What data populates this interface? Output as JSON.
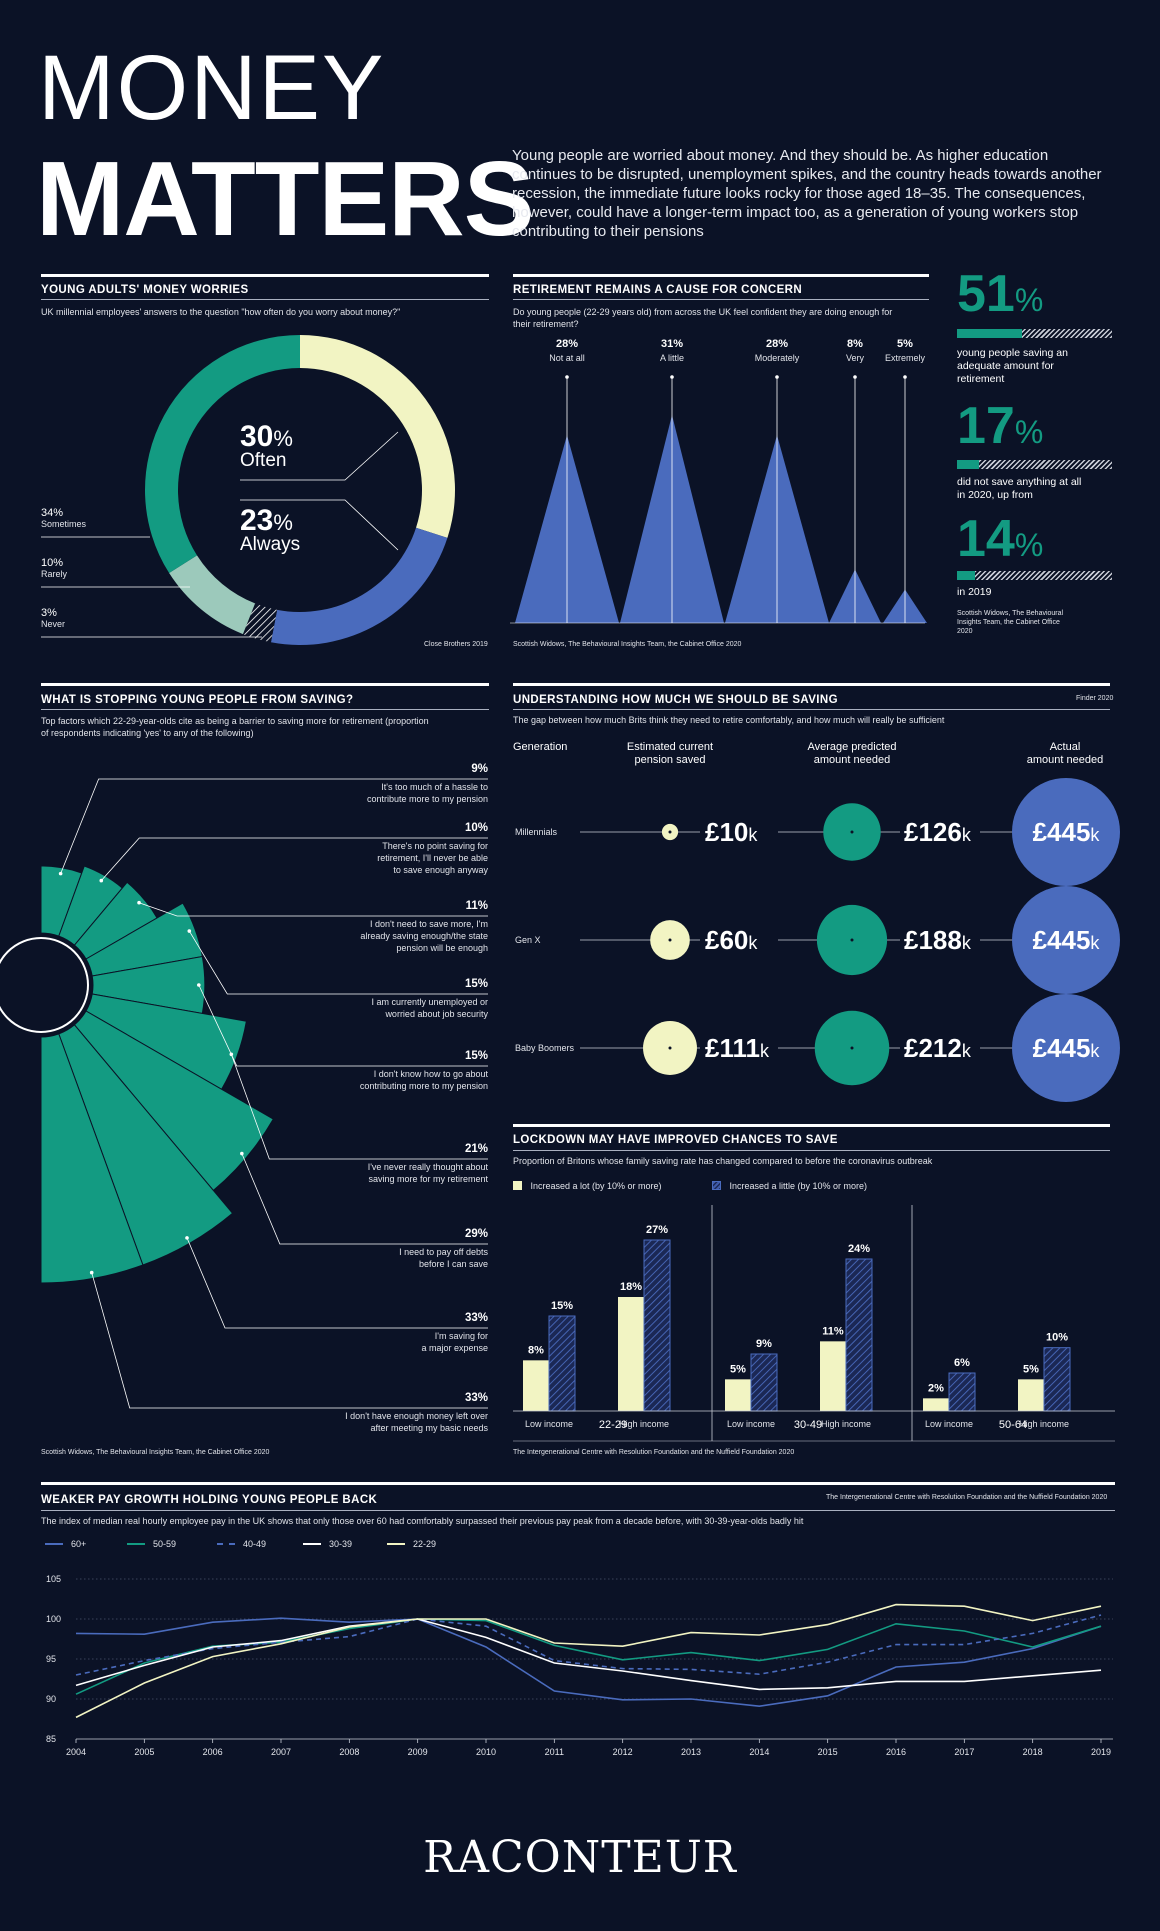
{
  "header": {
    "title_line1": "MONEY",
    "title_line2": "MATTERS",
    "intro": "Young people are worried about money. And they should be. As higher education continues to be disrupted, unemployment spikes, and the country heads towards another recession, the immediate future looks rocky for those aged 18–35. The consequences, however, could have a longer-term impact too, as a generation of young workers stop contributing to their pensions"
  },
  "colors": {
    "background": "#0b1226",
    "teal": "#139b82",
    "blue": "#4a6bbd",
    "cream": "#f2f4c3",
    "mint": "#9cc9bb"
  },
  "worries": {
    "title": "YOUNG ADULTS' MONEY WORRIES",
    "subtitle": "UK millennial employees' answers to the question \"how often do you worry about money?\"",
    "source": "Close Brothers 2019",
    "chart_data": {
      "type": "pie",
      "categories": [
        "Often",
        "Always",
        "Never",
        "Rarely",
        "Sometimes"
      ],
      "values": [
        30,
        23,
        3,
        10,
        34
      ],
      "colors": [
        "#f2f4c3",
        "#4a6bbd",
        "#ffffff",
        "#9cc9bb",
        "#139b82"
      ]
    },
    "labels": [
      {
        "value": "30%",
        "num": "30",
        "name": "Often"
      },
      {
        "value": "23%",
        "num": "23",
        "name": "Always"
      },
      {
        "value": "34%",
        "name": "Sometimes"
      },
      {
        "value": "10%",
        "name": "Rarely"
      },
      {
        "value": "3%",
        "name": "Never"
      }
    ]
  },
  "retirement": {
    "title": "RETIREMENT REMAINS A CAUSE FOR CONCERN",
    "subtitle": "Do young people (22-29 years old) from across the UK feel confident they are doing enough for their retirement?",
    "source": "Scottish Widows, The Behavioural Insights Team, the Cabinet Office 2020",
    "chart_data": {
      "type": "bar",
      "categories": [
        "Not at all",
        "A little",
        "Moderately",
        "Very",
        "Extremely"
      ],
      "values": [
        28,
        31,
        28,
        8,
        5
      ],
      "value_labels": [
        "28%",
        "31%",
        "28%",
        "8%",
        "5%"
      ]
    },
    "stats": [
      {
        "num": "51",
        "unit": "%",
        "fill": 0.51,
        "text": "young people saving an adequate amount for retirement"
      },
      {
        "num": "17",
        "unit": "%",
        "fill": 0.17,
        "text": "did not save anything at all in 2020, up from"
      },
      {
        "num": "14",
        "unit": "%",
        "fill": 0.14,
        "text": "in 2019"
      }
    ],
    "stats_source": "Scottish Widows, The Behavioural Insights Team, the Cabinet Office 2020"
  },
  "stopping": {
    "title": "WHAT IS STOPPING YOUNG PEOPLE FROM SAVING?",
    "subtitle": "Top factors which 22-29-year-olds cite as being a barrier to saving more for retirement (proportion of respondents indicating 'yes' to any of the following)",
    "source": "Scottish Widows, The Behavioural Insights Team, the Cabinet Office 2020",
    "chart_data": {
      "type": "bar",
      "categories": [
        "It's too much of a hassle to contribute more to my pension",
        "There's no point saving for retirement, I'll never be able to save enough anyway",
        "I don't need to save more, I'm already saving enough/the state pension will be enough",
        "I am currently unemployed or worried about job security",
        "I don't know how to go about contributing more to my pension",
        "I've never really thought about saving more for my retirement",
        "I need to pay off debts before I can save",
        "I'm saving for a major expense",
        "I don't have enough money left over after meeting my basic needs"
      ],
      "values": [
        9,
        10,
        11,
        15,
        15,
        21,
        29,
        33,
        33
      ]
    },
    "items": [
      {
        "value": "9%",
        "l1": "It's too much of a hassle to",
        "l2": "contribute more to my pension",
        "l3": ""
      },
      {
        "value": "10%",
        "l1": "There's no point saving for",
        "l2": "retirement, I'll never be able",
        "l3": "to save enough anyway"
      },
      {
        "value": "11%",
        "l1": "I don't need to save more, I'm",
        "l2": "already saving enough/the state",
        "l3": "pension will be enough"
      },
      {
        "value": "15%",
        "l1": "I am currently unemployed or",
        "l2": "worried about job security",
        "l3": ""
      },
      {
        "value": "15%",
        "l1": "I don't know how to go about",
        "l2": "contributing more to my pension",
        "l3": ""
      },
      {
        "value": "21%",
        "l1": "I've never really thought about",
        "l2": "saving more for my retirement",
        "l3": ""
      },
      {
        "value": "29%",
        "l1": "I need to pay off debts",
        "l2": "before I can save",
        "l3": ""
      },
      {
        "value": "33%",
        "l1": "I'm saving for",
        "l2": "a major expense",
        "l3": ""
      },
      {
        "value": "33%",
        "l1": "I don't have enough money left over",
        "l2": "after meeting my basic needs",
        "l3": ""
      }
    ]
  },
  "understanding": {
    "title": "UNDERSTANDING HOW MUCH WE SHOULD BE SAVING",
    "source": "Finder 2020",
    "subtitle": "The gap between how much Brits think they need to retire comfortably, and how much will really be sufficient",
    "headers": {
      "gen": "Generation",
      "est1": "Estimated current",
      "est2": "pension saved",
      "avg1": "Average predicted",
      "avg2": "amount needed",
      "act1": "Actual",
      "act2": "amount needed"
    },
    "chart_data": {
      "type": "table",
      "columns": [
        "Generation",
        "Estimated current pension saved",
        "Average predicted amount needed",
        "Actual amount needed"
      ],
      "rows": [
        [
          "Millennials",
          "£10k",
          "£126k",
          "£445k"
        ],
        [
          "Gen X",
          "£60k",
          "£188k",
          "£445k"
        ],
        [
          "Baby Boomers",
          "£111k",
          "£212k",
          "£445k"
        ]
      ]
    },
    "rows": [
      {
        "gen": "Millennials",
        "est": "£10",
        "avg": "£126",
        "act": "£445",
        "est_v": 10,
        "avg_v": 126,
        "act_v": 445
      },
      {
        "gen": "Gen X",
        "est": "£60",
        "avg": "£188",
        "act": "£445",
        "est_v": 60,
        "avg_v": 188,
        "act_v": 445
      },
      {
        "gen": "Baby Boomers",
        "est": "£111",
        "avg": "£212",
        "act": "£445",
        "est_v": 111,
        "avg_v": 212,
        "act_v": 445
      }
    ],
    "unit": "k"
  },
  "lockdown": {
    "title": "LOCKDOWN MAY HAVE IMPROVED CHANCES TO SAVE",
    "subtitle": "Proportion of Britons whose family saving rate has changed compared to before the coronavirus outbreak",
    "source": "The Intergenerational Centre with Resolution Foundation and the Nuffield Foundation 2020",
    "legend": [
      "Increased a lot (by 10% or more)",
      "Increased a little (by 10% or more)"
    ],
    "groups": [
      "22-29",
      "30-49",
      "50-64"
    ],
    "chart_data": {
      "type": "bar",
      "categories": [
        "Low income",
        "High income",
        "Low income",
        "High income",
        "Low income",
        "High income"
      ],
      "groups": [
        "22-29",
        "22-29",
        "30-49",
        "30-49",
        "50-64",
        "50-64"
      ],
      "series": [
        {
          "name": "Increased a lot (by 10% or more)",
          "values": [
            8,
            18,
            5,
            11,
            2,
            5
          ]
        },
        {
          "name": "Increased a little (by 10% or more)",
          "values": [
            15,
            27,
            9,
            24,
            6,
            10
          ]
        }
      ]
    }
  },
  "pay": {
    "title": "WEAKER PAY GROWTH HOLDING YOUNG PEOPLE BACK",
    "source": "The Intergenerational Centre with Resolution Foundation and the Nuffield Foundation 2020",
    "subtitle": "The index of median real hourly employee pay in the UK shows that only those over 60 had comfortably surpassed their previous pay peak from a decade before, with 30-39-year-olds badly hit",
    "chart_data": {
      "type": "line",
      "x": [
        2004,
        2005,
        2006,
        2007,
        2008,
        2009,
        2010,
        2011,
        2012,
        2013,
        2014,
        2015,
        2016,
        2017,
        2018,
        2019
      ],
      "ylim": [
        85,
        105
      ],
      "yticks": [
        85,
        90,
        95,
        100,
        105
      ],
      "series": [
        {
          "name": "60+",
          "color": "#4a6bbd",
          "dash": false,
          "values": [
            98.2,
            98.1,
            99.6,
            100.1,
            99.6,
            100,
            96.5,
            91,
            89.9,
            90,
            89.1,
            90.4,
            94,
            94.6,
            96.3,
            99.1
          ]
        },
        {
          "name": "50-59",
          "color": "#139b82",
          "dash": false,
          "values": [
            90.6,
            94.5,
            96.6,
            97.1,
            98.8,
            100,
            99.8,
            96.7,
            94.9,
            95.8,
            94.8,
            96.2,
            99.4,
            98.5,
            96.5,
            99.1
          ]
        },
        {
          "name": "40-49",
          "color": "#4a6bbd",
          "dash": true,
          "values": [
            93,
            94.8,
            96.3,
            97.1,
            97.8,
            100,
            99.1,
            94.8,
            93.8,
            93.7,
            93.1,
            94.6,
            96.8,
            96.8,
            98.2,
            100.5
          ]
        },
        {
          "name": "30-39",
          "color": "#ffffff",
          "dash": false,
          "values": [
            91.7,
            94.2,
            96.5,
            97.3,
            99.1,
            100,
            97.7,
            94.5,
            93.5,
            92.3,
            91.2,
            91.4,
            92.2,
            92.2,
            92.9,
            93.6
          ]
        },
        {
          "name": "22-29",
          "color": "#f2f4c3",
          "dash": false,
          "values": [
            87.7,
            92,
            95.3,
            96.9,
            99,
            100,
            100,
            97,
            96.6,
            98.3,
            98,
            99.3,
            101.8,
            101.6,
            99.8,
            101.6
          ]
        }
      ]
    }
  },
  "footer": {
    "logo": "RACONTEUR"
  }
}
